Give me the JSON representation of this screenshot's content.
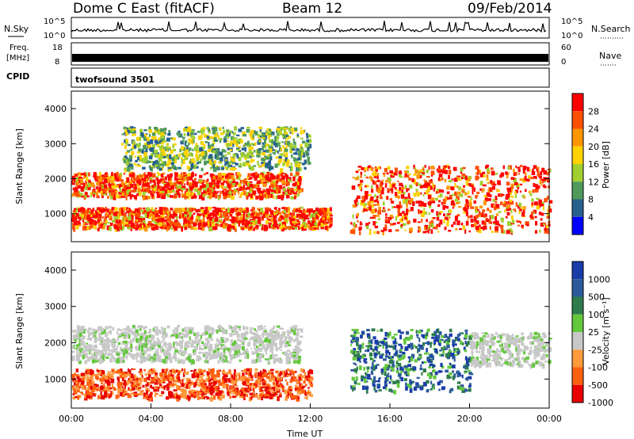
{
  "header": {
    "title": "Dome C East (fitACF)",
    "beam": "Beam 12",
    "date": "09/Feb/2014"
  },
  "status_panel": {
    "nsky_label": "N.Sky",
    "nsky_ticks": [
      "10^5",
      "10^0"
    ],
    "nsearch_label": "N.Search",
    "nsearch_ticks": [
      "10^5",
      "10^0"
    ],
    "freq_label": "Freq.",
    "freq_unit": "[MHz]",
    "freq_ticks": [
      "18",
      "8"
    ],
    "nave_label": "Nave",
    "nave_ticks": [
      "60",
      "0"
    ],
    "cpid_label": "CPID",
    "cpid_value": "twofsound 3501"
  },
  "chart_data": [
    {
      "type": "heatmap",
      "name": "power",
      "ylabel": "Slant Range [km]",
      "yticks": [
        "1000",
        "2000",
        "3000",
        "4000"
      ],
      "ylim": [
        200,
        4500
      ],
      "xlim": [
        "00:00",
        "24:00"
      ],
      "colorbar_label": "Power [dB]",
      "colorbar_ticks": [
        "28",
        "24",
        "20",
        "16",
        "12",
        "8",
        "4"
      ],
      "colorbar_colors": [
        "#ff0000",
        "#ff5000",
        "#ff9600",
        "#ffd200",
        "#a0d030",
        "#4f9a5a",
        "#26608f",
        "#0000ff"
      ],
      "regions": [
        {
          "t0": 0.0,
          "t1": 13.0,
          "r0": 600,
          "r1": 1200,
          "level": "high"
        },
        {
          "t0": 0.0,
          "t1": 11.5,
          "r0": 1500,
          "r1": 2200,
          "level": "high"
        },
        {
          "t0": 14.0,
          "t1": 24.0,
          "r0": 500,
          "r1": 2400,
          "level": "high"
        },
        {
          "t0": 2.5,
          "t1": 12.0,
          "r0": 2300,
          "r1": 3500,
          "level": "medium"
        }
      ]
    },
    {
      "type": "heatmap",
      "name": "velocity",
      "ylabel": "Slant Range [km]",
      "yticks": [
        "1000",
        "2000",
        "3000",
        "4000"
      ],
      "ylim": [
        200,
        4500
      ],
      "xlim": [
        "00:00",
        "24:00"
      ],
      "xticks": [
        "00:00",
        "04:00",
        "08:00",
        "12:00",
        "16:00",
        "20:00",
        "00:00"
      ],
      "xlabel": "Time UT",
      "colorbar_label": "Velocity [m s⁻¹]",
      "colorbar_ticks": [
        "1000",
        "500",
        "100",
        "25",
        "-25",
        "-100",
        "-500",
        "-1000"
      ],
      "colorbar_colors": [
        "#1a3ca8",
        "#2a5a9a",
        "#2e7c4c",
        "#64c83c",
        "#c8c8c8",
        "#ff9a3c",
        "#ff6010",
        "#e80000"
      ],
      "regions": [
        {
          "t0": 0.0,
          "t1": 12.0,
          "r0": 500,
          "r1": 1300,
          "velocity": -150
        },
        {
          "t0": 0.0,
          "t1": 11.5,
          "r0": 1500,
          "r1": 2500,
          "velocity": 0
        },
        {
          "t0": 14.0,
          "t1": 20.0,
          "r0": 700,
          "r1": 2400,
          "velocity": 400
        },
        {
          "t0": 20.0,
          "t1": 24.0,
          "r0": 1400,
          "r1": 2300,
          "velocity": 0
        }
      ]
    }
  ]
}
